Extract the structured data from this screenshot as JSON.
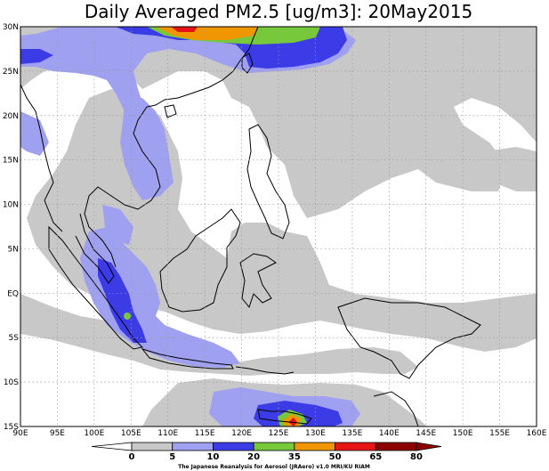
{
  "title": "Daily Averaged PM2.5 [ug/m3]: 20May2015",
  "map": {
    "lon_range": [
      90,
      160
    ],
    "lat_range": [
      -15,
      30
    ],
    "lat_ticks": [
      {
        "value": 30,
        "label": "30N"
      },
      {
        "value": 25,
        "label": "25N"
      },
      {
        "value": 20,
        "label": "20N"
      },
      {
        "value": 15,
        "label": "15N"
      },
      {
        "value": 10,
        "label": "10N"
      },
      {
        "value": 5,
        "label": "5N"
      },
      {
        "value": 0,
        "label": "EQ"
      },
      {
        "value": -5,
        "label": "5S"
      },
      {
        "value": -10,
        "label": "10S"
      },
      {
        "value": -15,
        "label": "15S"
      }
    ],
    "lon_ticks": [
      {
        "value": 90,
        "label": "90E"
      },
      {
        "value": 95,
        "label": "95E"
      },
      {
        "value": 100,
        "label": "100E"
      },
      {
        "value": 105,
        "label": "105E"
      },
      {
        "value": 110,
        "label": "110E"
      },
      {
        "value": 115,
        "label": "115E"
      },
      {
        "value": 120,
        "label": "120E"
      },
      {
        "value": 125,
        "label": "125E"
      },
      {
        "value": 130,
        "label": "130E"
      },
      {
        "value": 135,
        "label": "135E"
      },
      {
        "value": 140,
        "label": "140E"
      },
      {
        "value": 145,
        "label": "145E"
      },
      {
        "value": 150,
        "label": "150E"
      },
      {
        "value": 155,
        "label": "155E"
      },
      {
        "value": 160,
        "label": "160E"
      }
    ],
    "grid": "dotted"
  },
  "colorbar": {
    "levels": [
      "0",
      "5",
      "10",
      "20",
      "35",
      "50",
      "65",
      "80"
    ],
    "colors": [
      "#ffffff",
      "#c8c8c8",
      "#a0a0f0",
      "#3c3ce6",
      "#78c83c",
      "#f09600",
      "#e61414",
      "#8c0000"
    ]
  },
  "credit": "The Japanese Reanalysis for Aerosol (JRAero) v1.0 MRI/KU RIAM",
  "colors": {
    "gray": "#c8c8c8",
    "light_blue": "#a0a0f0",
    "blue": "#3c3ce6",
    "green": "#78c83c",
    "orange": "#f09600",
    "red": "#e61414",
    "dark_red": "#8c0000"
  }
}
